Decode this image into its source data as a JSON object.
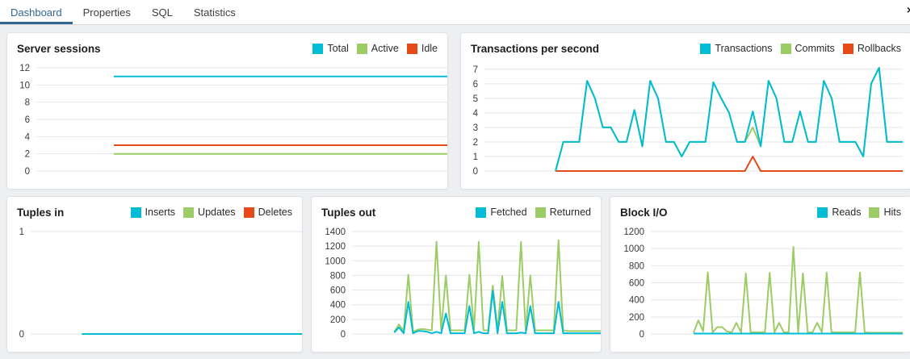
{
  "tabs": {
    "items": [
      {
        "label": "Dashboard",
        "active": true
      },
      {
        "label": "Properties",
        "active": false
      },
      {
        "label": "SQL",
        "active": false
      },
      {
        "label": "Statistics",
        "active": false
      }
    ],
    "close_icon": "×"
  },
  "colors": {
    "cyan": "#00BCD4",
    "green": "#9CCC65",
    "orange": "#E64A19",
    "accent": "#326690"
  },
  "chart_data": [
    {
      "id": "server-sessions",
      "type": "line",
      "title": "Server sessions",
      "ylim": [
        0,
        12
      ],
      "yticks": [
        0,
        2,
        4,
        6,
        8,
        10,
        12
      ],
      "grid": true,
      "legend_position": "top-right",
      "series": [
        {
          "name": "Total",
          "color": "#00BCD4",
          "values": [
            null,
            null,
            null,
            null,
            null,
            null,
            null,
            null,
            null,
            null,
            11,
            11,
            11,
            11,
            11,
            11,
            11,
            11,
            11,
            11,
            11,
            11,
            11,
            11,
            11,
            11,
            11,
            11,
            11,
            11,
            11,
            11,
            11,
            11,
            11,
            11,
            11,
            11,
            11,
            11,
            11,
            11,
            11,
            11,
            11,
            11,
            11,
            11,
            11,
            11,
            11,
            11,
            11,
            11
          ]
        },
        {
          "name": "Active",
          "color": "#9CCC65",
          "values": [
            null,
            null,
            null,
            null,
            null,
            null,
            null,
            null,
            null,
            null,
            2,
            2,
            2,
            2,
            2,
            2,
            2,
            2,
            2,
            2,
            2,
            2,
            2,
            2,
            2,
            2,
            2,
            2,
            2,
            2,
            2,
            2,
            2,
            2,
            2,
            2,
            2,
            2,
            2,
            2,
            2,
            2,
            2,
            2,
            2,
            2,
            2,
            2,
            2,
            2,
            2,
            2,
            2,
            2
          ]
        },
        {
          "name": "Idle",
          "color": "#E64A19",
          "values": [
            null,
            null,
            null,
            null,
            null,
            null,
            null,
            null,
            null,
            null,
            3,
            3,
            3,
            3,
            3,
            3,
            3,
            3,
            3,
            3,
            3,
            3,
            3,
            3,
            3,
            3,
            3,
            3,
            3,
            3,
            3,
            3,
            3,
            3,
            3,
            3,
            3,
            3,
            3,
            3,
            3,
            3,
            3,
            3,
            3,
            3,
            3,
            3,
            3,
            3,
            3,
            3,
            3,
            3
          ]
        }
      ]
    },
    {
      "id": "transactions-per-second",
      "type": "line",
      "title": "Transactions per second",
      "ylim": [
        0,
        7.1
      ],
      "yticks": [
        0,
        1,
        2,
        3,
        4,
        5,
        6,
        7
      ],
      "grid": true,
      "legend_position": "top-right",
      "series": [
        {
          "name": "Transactions",
          "color": "#00BCD4",
          "values": [
            null,
            null,
            null,
            null,
            null,
            null,
            null,
            null,
            null,
            0,
            2,
            2,
            2,
            6.2,
            5,
            3,
            3,
            2,
            2,
            4.2,
            1.7,
            6.2,
            5,
            2,
            2,
            1,
            2,
            2,
            2,
            6.1,
            5,
            4,
            2,
            2,
            4.1,
            1.7,
            6.2,
            5,
            2,
            2,
            4.1,
            2,
            2,
            6.2,
            5,
            2,
            2,
            2,
            1,
            6,
            7.1,
            2,
            2,
            2
          ]
        },
        {
          "name": "Commits",
          "color": "#9CCC65",
          "values": [
            null,
            null,
            null,
            null,
            null,
            null,
            null,
            null,
            null,
            0,
            2,
            2,
            2,
            6.2,
            5,
            3,
            3,
            2,
            2,
            4.2,
            1.7,
            6.2,
            5,
            2,
            2,
            1,
            2,
            2,
            2,
            6.1,
            5,
            4,
            2,
            2,
            3,
            1.7,
            6.2,
            5,
            2,
            2,
            4.1,
            2,
            2,
            6.2,
            5,
            2,
            2,
            2,
            1,
            6,
            7.1,
            2,
            2,
            2
          ]
        },
        {
          "name": "Rollbacks",
          "color": "#E64A19",
          "values": [
            null,
            null,
            null,
            null,
            null,
            null,
            null,
            null,
            null,
            0,
            0,
            0,
            0,
            0,
            0,
            0,
            0,
            0,
            0,
            0,
            0,
            0,
            0,
            0,
            0,
            0,
            0,
            0,
            0,
            0,
            0,
            0,
            0,
            0,
            1,
            0,
            0,
            0,
            0,
            0,
            0,
            0,
            0,
            0,
            0,
            0,
            0,
            0,
            0,
            0,
            0,
            0,
            0,
            0
          ]
        }
      ]
    },
    {
      "id": "tuples-in",
      "type": "line",
      "title": "Tuples in",
      "ylim": [
        0,
        1
      ],
      "yticks": [
        0,
        1
      ],
      "grid": true,
      "legend_position": "top-right",
      "series": [
        {
          "name": "Inserts",
          "color": "#00BCD4",
          "values": [
            null,
            null,
            null,
            null,
            null,
            null,
            null,
            null,
            null,
            null,
            0,
            0,
            0,
            0,
            0,
            0,
            0,
            0,
            0,
            0,
            0,
            0,
            0,
            0,
            0,
            0,
            0,
            0,
            0,
            0,
            0,
            0,
            0,
            0,
            0,
            0,
            0,
            0,
            0,
            0,
            0,
            0,
            0,
            0,
            0,
            0,
            0,
            0,
            0,
            0,
            0,
            0,
            0,
            0
          ]
        },
        {
          "name": "Updates",
          "color": "#9CCC65",
          "values": [
            null,
            null,
            null,
            null,
            null,
            null,
            null,
            null,
            null,
            null,
            0,
            0,
            0,
            0,
            0,
            0,
            0,
            0,
            0,
            0,
            0,
            0,
            0,
            0,
            0,
            0,
            0,
            0,
            0,
            0,
            0,
            0,
            0,
            0,
            0,
            0,
            0,
            0,
            0,
            0,
            0,
            0,
            0,
            0,
            0,
            0,
            0,
            0,
            0,
            0,
            0,
            0,
            0,
            0
          ]
        },
        {
          "name": "Deletes",
          "color": "#E64A19",
          "values": [
            null,
            null,
            null,
            null,
            null,
            null,
            null,
            null,
            null,
            null,
            0,
            0,
            0,
            0,
            0,
            0,
            0,
            0,
            0,
            0,
            0,
            0,
            0,
            0,
            0,
            0,
            0,
            0,
            0,
            0,
            0,
            0,
            0,
            0,
            0,
            0,
            0,
            0,
            0,
            0,
            0,
            0,
            0,
            0,
            0,
            0,
            0,
            0,
            0,
            0,
            0,
            0,
            0,
            0
          ]
        }
      ]
    },
    {
      "id": "tuples-out",
      "type": "line",
      "title": "Tuples out",
      "ylim": [
        0,
        1400
      ],
      "yticks": [
        0,
        200,
        400,
        600,
        800,
        1000,
        1200,
        1400
      ],
      "grid": true,
      "legend_position": "top-right",
      "series": [
        {
          "name": "Fetched",
          "color": "#00BCD4",
          "values": [
            null,
            null,
            null,
            null,
            null,
            null,
            null,
            null,
            null,
            20,
            90,
            10,
            440,
            10,
            40,
            40,
            30,
            10,
            30,
            10,
            280,
            10,
            10,
            10,
            10,
            380,
            10,
            30,
            10,
            10,
            590,
            10,
            440,
            10,
            10,
            10,
            20,
            10,
            380,
            10,
            10,
            10,
            10,
            10,
            440,
            10,
            10,
            10,
            10,
            10,
            10,
            10,
            10,
            10
          ]
        },
        {
          "name": "Returned",
          "color": "#9CCC65",
          "values": [
            null,
            null,
            null,
            null,
            null,
            null,
            null,
            null,
            null,
            30,
            130,
            40,
            810,
            30,
            60,
            70,
            60,
            50,
            1260,
            50,
            800,
            50,
            50,
            50,
            50,
            810,
            60,
            1260,
            50,
            50,
            660,
            50,
            790,
            50,
            50,
            50,
            1260,
            50,
            800,
            50,
            50,
            50,
            50,
            50,
            1280,
            50,
            40,
            40,
            40,
            40,
            40,
            40,
            40,
            40
          ]
        }
      ]
    },
    {
      "id": "block-io",
      "type": "line",
      "title": "Block I/O",
      "ylim": [
        0,
        1200
      ],
      "yticks": [
        0,
        200,
        400,
        600,
        800,
        1000,
        1200
      ],
      "grid": true,
      "legend_position": "top-right",
      "series": [
        {
          "name": "Reads",
          "color": "#00BCD4",
          "values": [
            null,
            null,
            null,
            null,
            null,
            null,
            null,
            null,
            null,
            5,
            5,
            5,
            5,
            5,
            5,
            5,
            5,
            5,
            5,
            5,
            5,
            5,
            5,
            5,
            5,
            5,
            5,
            5,
            5,
            5,
            5,
            5,
            5,
            5,
            5,
            5,
            5,
            5,
            5,
            5,
            5,
            5,
            5,
            5,
            5,
            5,
            5,
            5,
            5,
            5,
            5,
            5,
            5,
            5
          ]
        },
        {
          "name": "Hits",
          "color": "#9CCC65",
          "values": [
            null,
            null,
            null,
            null,
            null,
            null,
            null,
            null,
            null,
            15,
            160,
            30,
            720,
            20,
            80,
            80,
            30,
            20,
            130,
            20,
            710,
            20,
            20,
            20,
            20,
            715,
            20,
            130,
            20,
            20,
            1020,
            20,
            710,
            20,
            20,
            130,
            20,
            720,
            20,
            20,
            20,
            20,
            20,
            20,
            720,
            20,
            15,
            15,
            15,
            15,
            15,
            15,
            15,
            15
          ]
        }
      ]
    }
  ]
}
